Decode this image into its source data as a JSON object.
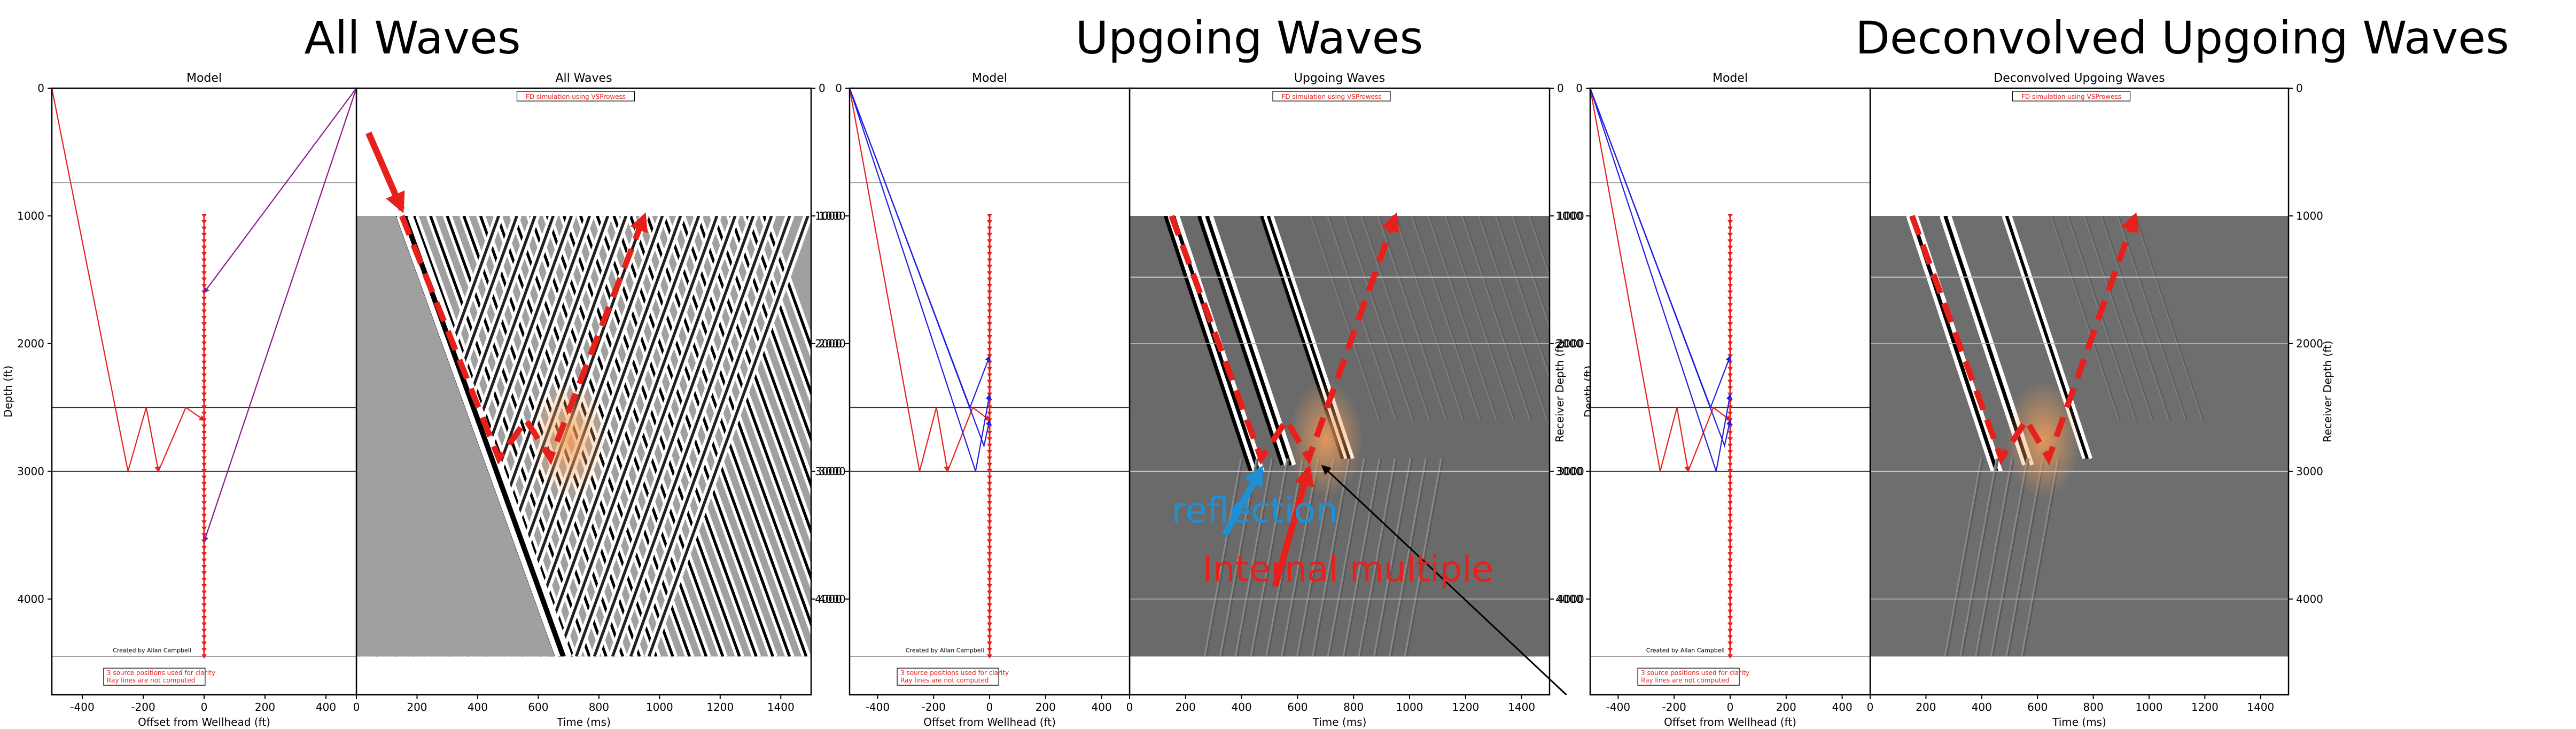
{
  "panels": [
    {
      "heading": "All Waves",
      "model_title": "Model",
      "seis_title": "All Waves",
      "annotation": "FD simulation using VSProwess",
      "credit": "Created by Allan Campbell",
      "note_line1": "3 source positions used for clarity",
      "note_line2": "Ray lines are not computed",
      "model_xlabel": "Offset from Wellhead (ft)",
      "model_ylabel": "Depth (ft)",
      "seis_xlabel": "Time (ms)",
      "seis_ylabel": "",
      "callouts": []
    },
    {
      "heading": "Upgoing Waves",
      "model_title": "Model",
      "seis_title": "Upgoing Waves",
      "annotation": "FD simulation using VSProwess",
      "credit": "Created by Allan Campbell",
      "note_line1": "3 source positions used for clarity",
      "note_line2": "Ray lines are not computed",
      "model_xlabel": "Offset from Wellhead (ft)",
      "model_ylabel": "",
      "seis_xlabel": "Time (ms)",
      "seis_ylabel": "Depth (ft)",
      "callouts": [
        {
          "text": "reflection",
          "color": "#1f8fd6"
        },
        {
          "text": "Internal multiple",
          "color": "#e8201c"
        }
      ]
    },
    {
      "heading": "Deconvolved Upgoing Waves",
      "model_title": "Model",
      "seis_title": "Deconvolved Upgoing Waves",
      "annotation": "FD simulation using VSProwess",
      "credit": "Created by Allan Campbell",
      "note_line1": "3 source positions used for clarity",
      "note_line2": "Ray lines are not computed",
      "model_xlabel": "Offset from Wellhead (ft)",
      "model_ylabel": "Receiver Depth (ft)",
      "seis_xlabel": "Time (ms)",
      "seis_ylabel": "Receiver Depth (ft)",
      "callouts": []
    }
  ],
  "chart_data": {
    "type": "scatter",
    "model_axis": {
      "xlim": [
        -500,
        500
      ],
      "xticks": [
        -400,
        -200,
        0,
        200,
        400
      ],
      "ylim": [
        4750,
        0
      ],
      "yticks": [
        0,
        1000,
        2000,
        3000,
        4000
      ]
    },
    "seismic_axis": {
      "xlim": [
        0,
        1500
      ],
      "xticks": [
        0,
        200,
        400,
        600,
        800,
        1000,
        1200,
        1400
      ],
      "ylim": [
        4750,
        0
      ],
      "yticks": [
        1000,
        2000,
        3000,
        4000
      ],
      "data_depth_range": [
        1000,
        4450
      ]
    },
    "layer_boundaries_ft": [
      740,
      2500,
      3000,
      4450
    ],
    "upgoing_layer_boundaries_ft": [
      1480,
      3000
    ],
    "receivers": {
      "offset_ft": 0,
      "depth_from_ft": 1000,
      "depth_to_ft": 4450,
      "spacing_ft": 50
    },
    "source_offsets_ft": [
      -500,
      -150,
      -50
    ],
    "ray_colors": {
      "direct": "#e8201c",
      "reflected": "#2020e0",
      "converted": "#8b1a8b"
    },
    "wave_events": {
      "direct_arrival_slope_ms_per_kft": 95,
      "first_break_time_ms": 150,
      "reflector_time_ms": 470,
      "multiple_time_ms": 640
    }
  },
  "colors": {
    "panel_bg_all": "#a0a0a0",
    "panel_bg_upgoing": "#6a6a6a",
    "panel_bg_decon": "#6e6e6e",
    "annotation_red": "#e8201c"
  }
}
